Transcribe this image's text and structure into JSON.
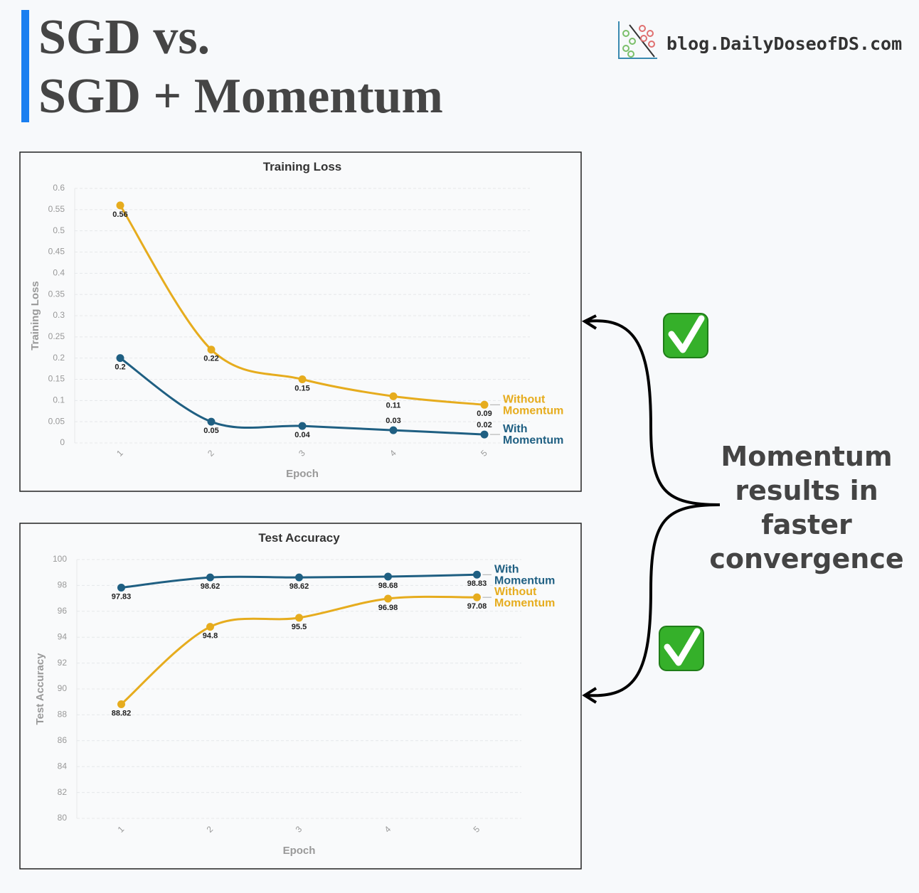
{
  "title": [
    "SGD vs.",
    "SGD + Momentum"
  ],
  "brand": "blog.DailyDoseofDS.com",
  "annotation": [
    "Momentum",
    "results in",
    "faster",
    "convergence"
  ],
  "chart_data": [
    {
      "type": "line",
      "title": "Training Loss",
      "x_label": "Epoch",
      "y_label": "Training Loss",
      "categories": [
        "1",
        "2",
        "3",
        "4",
        "5"
      ],
      "series": [
        {
          "name": "Without Momentum",
          "color": "#e6ac1e",
          "values": [
            0.56,
            0.22,
            0.15,
            0.11,
            0.09
          ]
        },
        {
          "name": "With Momentum",
          "color": "#1f5f82",
          "values": [
            0.2,
            0.05,
            0.04,
            0.03,
            0.02
          ]
        }
      ],
      "ylim": [
        0,
        0.6
      ],
      "yticks": [
        0,
        0.05,
        0.1,
        0.15,
        0.2,
        0.25,
        0.3,
        0.35,
        0.4,
        0.45,
        0.5,
        0.55,
        0.6
      ],
      "grid": true
    },
    {
      "type": "line",
      "title": "Test Accuracy",
      "x_label": "Epoch",
      "y_label": "Test Accuracy",
      "categories": [
        "1",
        "2",
        "3",
        "4",
        "5"
      ],
      "series": [
        {
          "name": "With Momentum",
          "color": "#1f5f82",
          "values": [
            97.83,
            98.62,
            98.62,
            98.68,
            98.83
          ]
        },
        {
          "name": "Without Momentum",
          "color": "#e6ac1e",
          "values": [
            88.82,
            94.8,
            95.5,
            96.98,
            97.08
          ]
        }
      ],
      "ylim": [
        80,
        100
      ],
      "yticks": [
        80,
        82,
        84,
        86,
        88,
        90,
        92,
        94,
        96,
        98,
        100
      ],
      "grid": true
    }
  ]
}
